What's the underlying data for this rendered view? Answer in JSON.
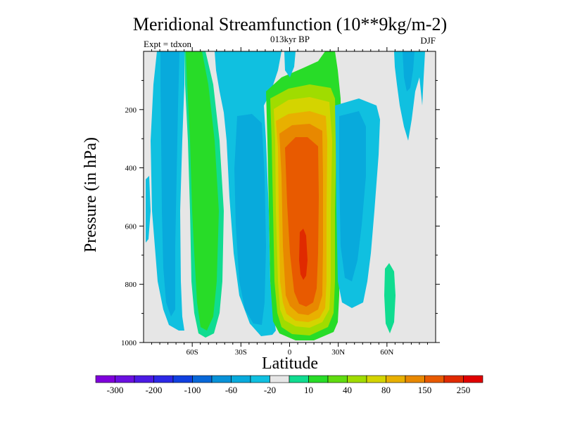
{
  "chart_data": {
    "type": "heatmap",
    "title": "Meridional Streamfunction (10**9kg/m-2)",
    "subtitle": "013kyr BP",
    "left_label": "Expt = tdxon",
    "right_label": "DJF",
    "xlabel": "Latitude",
    "ylabel": "Pressure (in hPa)",
    "xlim": [
      -90,
      90
    ],
    "ylim": [
      1000,
      0
    ],
    "x_ticks": [
      {
        "value": -60,
        "label": "60S"
      },
      {
        "value": -30,
        "label": "30S"
      },
      {
        "value": 0,
        "label": "0"
      },
      {
        "value": 30,
        "label": "30N"
      },
      {
        "value": 60,
        "label": "60N"
      }
    ],
    "y_ticks": [
      {
        "value": 200,
        "label": "200"
      },
      {
        "value": 400,
        "label": "400"
      },
      {
        "value": 600,
        "label": "600"
      },
      {
        "value": 800,
        "label": "800"
      },
      {
        "value": 1000,
        "label": "1000"
      }
    ],
    "colorbar": {
      "colors": [
        "#7f00dc",
        "#6a10e0",
        "#4b1ae4",
        "#2c28e6",
        "#1040e0",
        "#0868d8",
        "#0892d8",
        "#08aadc",
        "#10c0e0",
        "#e6e6e6",
        "#10dc90",
        "#28dc28",
        "#60dc10",
        "#a0dc00",
        "#d4d400",
        "#e8b000",
        "#e88800",
        "#e85a00",
        "#e02a00",
        "#e00000"
      ],
      "labels": [
        "-300",
        "-200",
        "-100",
        "-60",
        "-20",
        "10",
        "40",
        "80",
        "150",
        "250"
      ],
      "label_after_box": [
        1,
        3,
        5,
        7,
        9,
        11,
        13,
        15,
        17,
        19
      ]
    },
    "features": [
      {
        "name": "tropical-cell",
        "level_colors": [
          "#28dc28",
          "#a0dc00",
          "#d4d400",
          "#e8b000",
          "#e88800",
          "#e85a00",
          "#e02a00"
        ],
        "lat_center": 8,
        "lat_width": 22,
        "p_top": 60,
        "p_bottom": 980,
        "peak": 250
      },
      {
        "name": "southern-negative-cell",
        "lat_center": -20,
        "lat_width": 12,
        "p_top": 150,
        "p_bottom": 990,
        "value": -40
      },
      {
        "name": "southern-positive-cell",
        "lat_center": -46,
        "lat_width": 14,
        "p_top": 0,
        "p_bottom": 960,
        "value": 30
      },
      {
        "name": "southern-polar-negative",
        "lat_center": -66,
        "lat_width": 14,
        "p_top": 0,
        "p_bottom": 960,
        "value": -30
      },
      {
        "name": "northern-negative-cell",
        "lat_center": 38,
        "lat_width": 16,
        "p_top": 120,
        "p_bottom": 870,
        "value": -40
      },
      {
        "name": "northern-positive-cell",
        "lat_center": 63,
        "lat_width": 6,
        "p_top": 680,
        "p_bottom": 960,
        "value": 15
      }
    ]
  }
}
